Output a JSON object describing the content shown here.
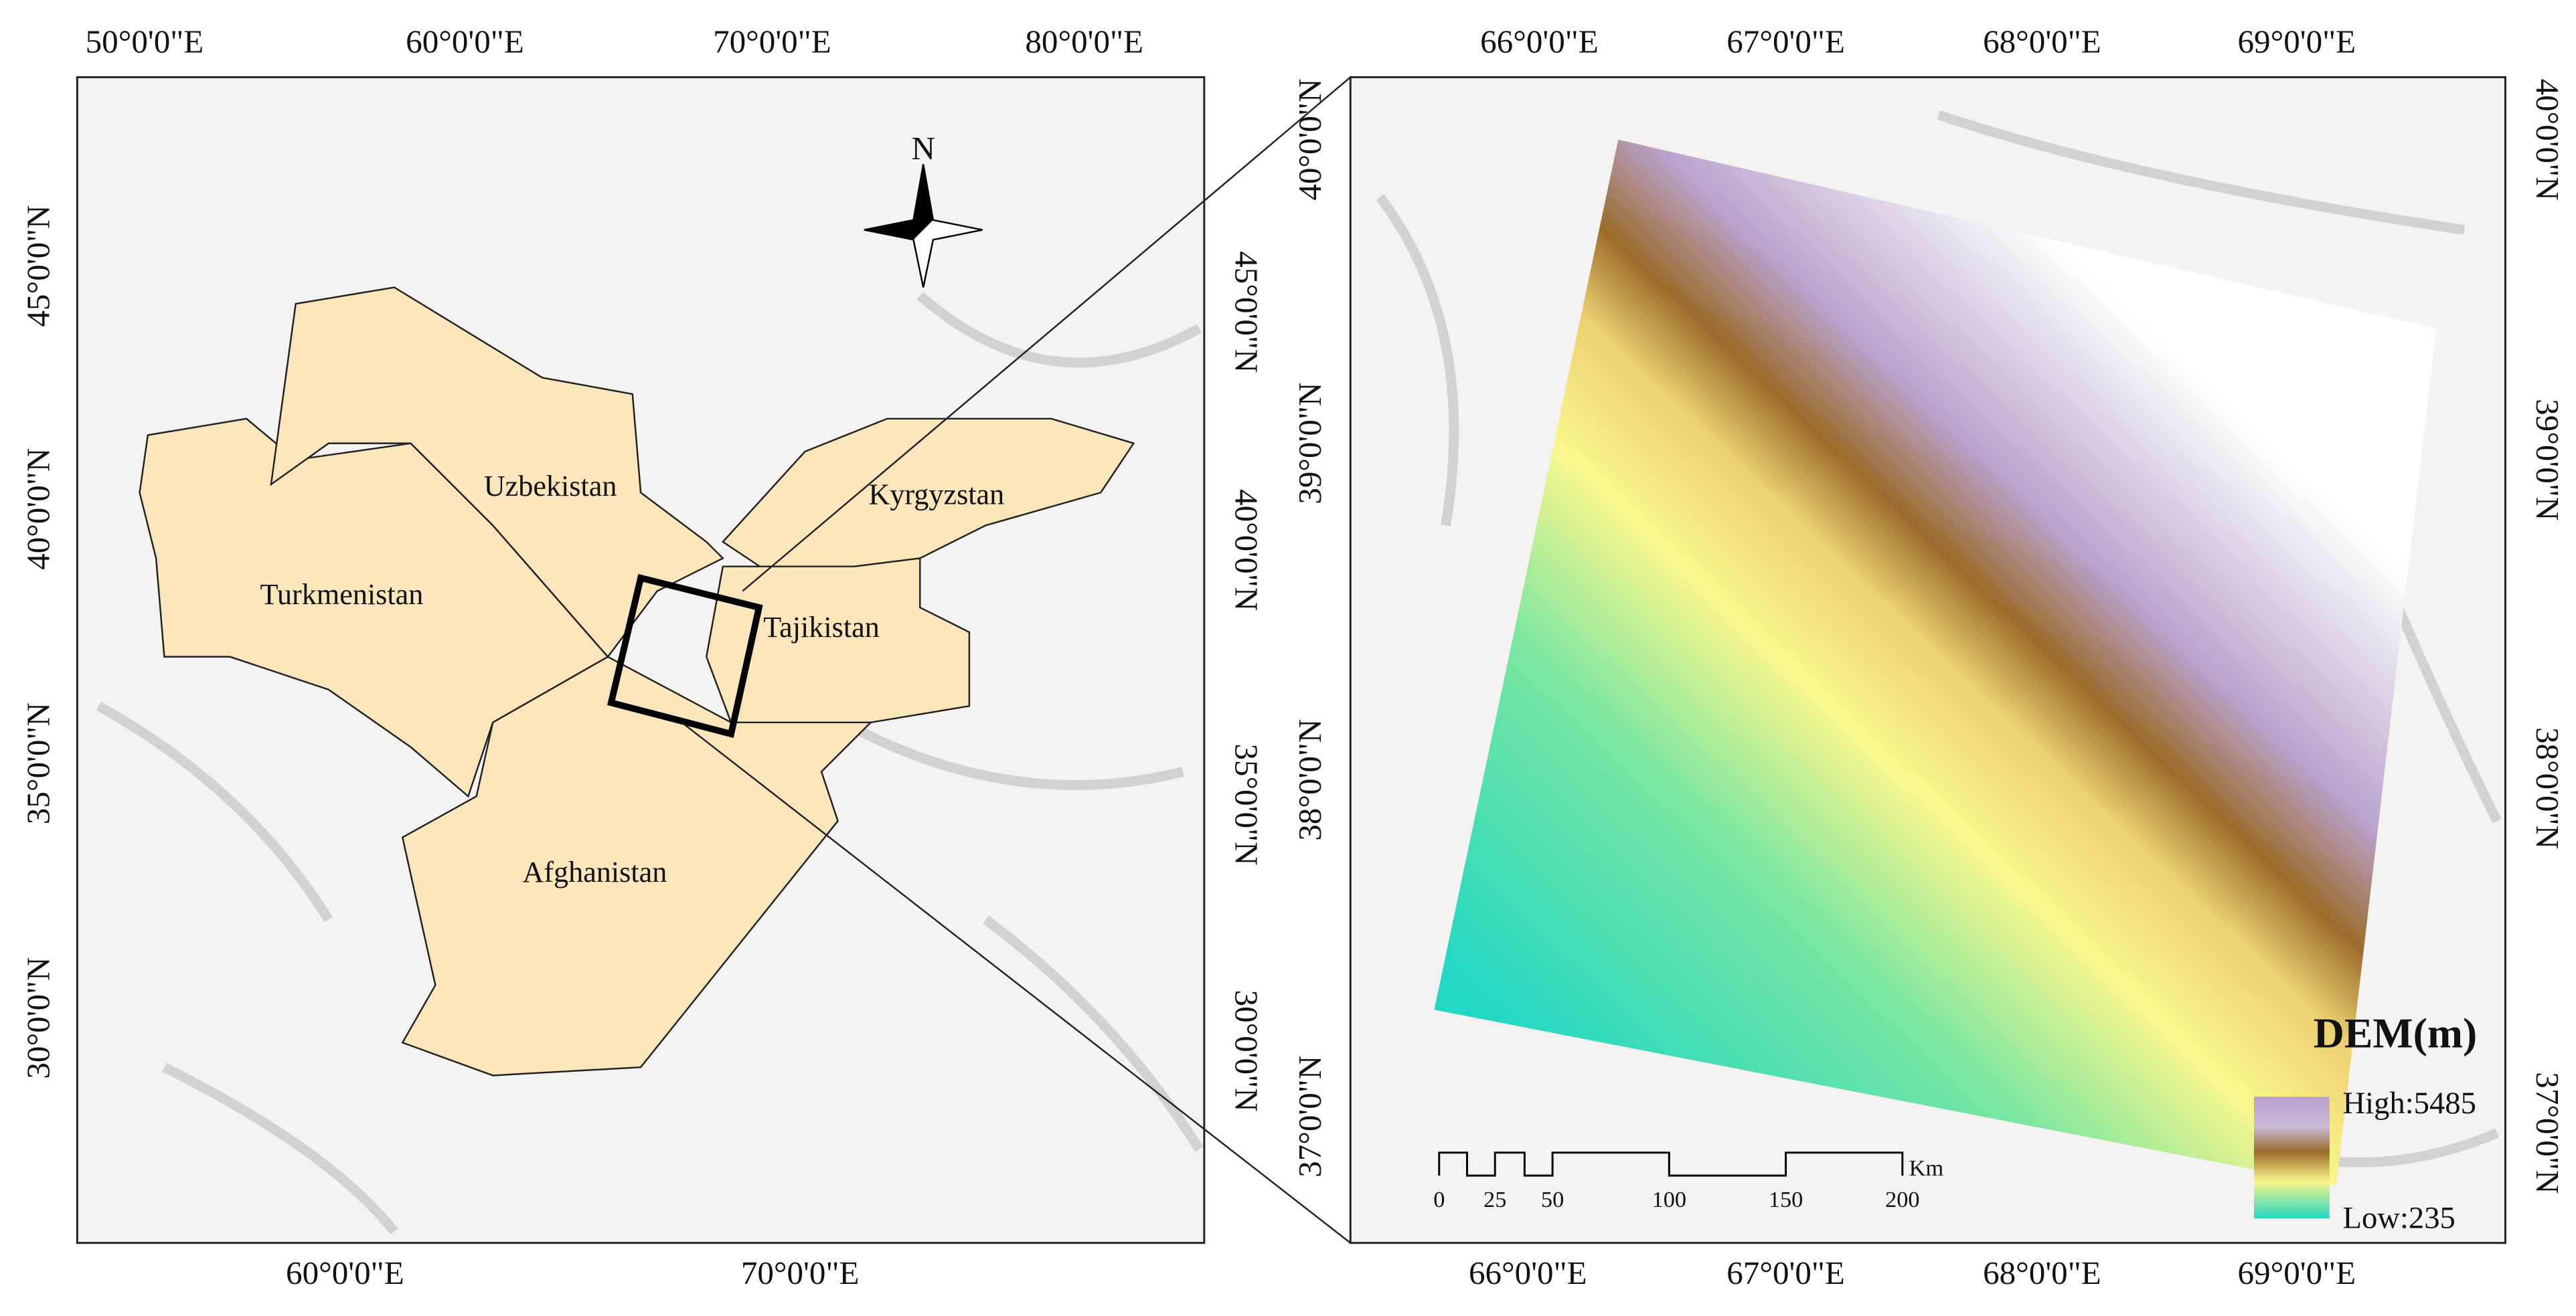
{
  "left_map": {
    "top_labels": [
      "50°0'0\"E",
      "60°0'0\"E",
      "70°0'0\"E",
      "80°0'0\"E"
    ],
    "bottom_labels": [
      "60°0'0\"E",
      "70°0'0\"E"
    ],
    "left_labels": [
      "45°0'0\"N",
      "40°0'0\"N",
      "35°0'0\"N",
      "30°0'0\"N"
    ],
    "right_labels": [
      "45°0'0\"N",
      "40°0'0\"N",
      "35°0'0\"N",
      "30°0'0\"N"
    ],
    "north": "N",
    "countries": [
      "Uzbekistan",
      "Kyrgyzstan",
      "Turkmenistan",
      "Tajikistan",
      "Afghanistan"
    ]
  },
  "right_map": {
    "top_labels": [
      "66°0'0\"E",
      "67°0'0\"E",
      "68°0'0\"E",
      "69°0'0\"E"
    ],
    "bottom_labels": [
      "66°0'0\"E",
      "67°0'0\"E",
      "68°0'0\"E",
      "69°0'0\"E"
    ],
    "left_labels": [
      "40°0'0\"N",
      "39°0'0\"N",
      "38°0'0\"N",
      "37°0'0\"N"
    ],
    "right_labels": [
      "40°0'0\"N",
      "39°0'0\"N",
      "38°0'0\"N",
      "37°0'0\"N"
    ],
    "legend": {
      "title": "DEM(m)",
      "high": "High:5485",
      "low": "Low:235"
    },
    "scale_bar": {
      "ticks": [
        "0",
        "25",
        "50",
        "100",
        "150",
        "200"
      ],
      "unit": "Km"
    }
  }
}
